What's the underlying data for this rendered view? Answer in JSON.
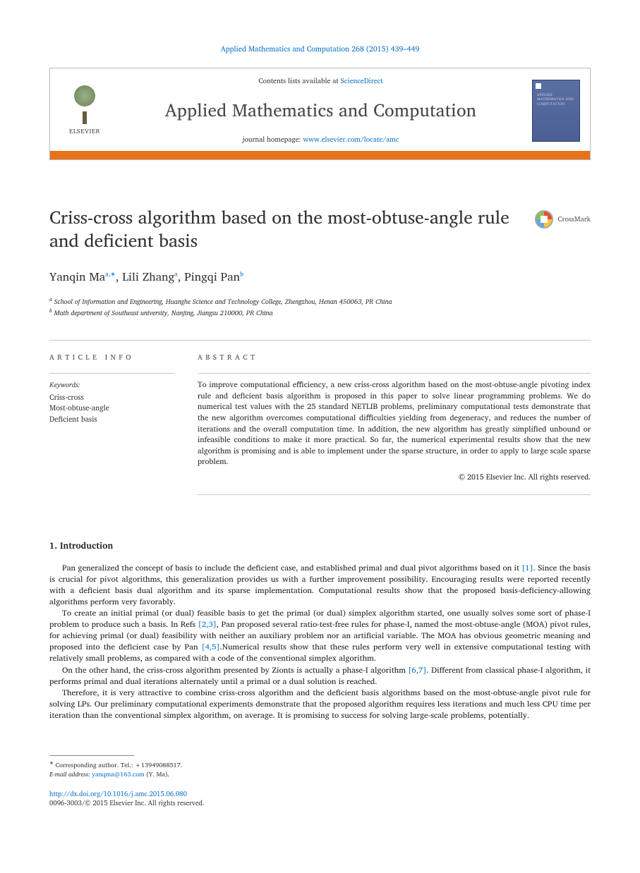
{
  "running_head": "Applied Mathematics and Computation 268 (2015) 439–449",
  "header": {
    "contents_prefix": "Contents lists available at ",
    "contents_link": "ScienceDirect",
    "journal": "Applied Mathematics and Computation",
    "homepage_prefix": "journal homepage: ",
    "homepage_link": "www.elsevier.com/locate/amc",
    "publisher_word": "ELSEVIER",
    "cover_text": "APPLIED\nMATHEMATICS\nAND\nCOMPUTATION",
    "accent_color": "#e9711c",
    "link_color": "#1173c7"
  },
  "article": {
    "title": "Criss-cross algorithm based on the most-obtuse-angle rule and deficient basis",
    "crossmark": "CrossMark",
    "authors_html": "Yanqin Ma<sup class='sup'>a,</sup><sup class='sup star'>∗</sup>, Lili Zhang<sup class='sup'>a</sup>, Pingqi Pan<sup class='sup'>b</sup>",
    "affiliations": [
      "a School of Information and Engineering, Huanghe Science and Technology College, Zhengzhou, Henan 450063, PR China",
      "b Math department of Southeast university, Nanjing, Jiangsu 210000, PR China"
    ]
  },
  "info": {
    "heading": "ARTICLE INFO",
    "keywords_label": "Keywords:",
    "keywords": [
      "Criss-cross",
      "Most-obtuse-angle",
      "Deficient basis"
    ]
  },
  "abstract": {
    "heading": "ABSTRACT",
    "text": "To improve computational efficiency, a new criss-cross algorithm based on the most-obtuse-angle pivoting index rule and deficient basis algorithm is proposed in this paper to solve linear programming problems. We do numerical test values with the 25 standard NETLIB problems, preliminary computational tests demonstrate that the new algorithm overcomes computational difficulties yielding from degeneracy, and reduces the number of iterations and the overall computation time. In addition, the new algorithm has greatly simplified unbound or infeasible conditions to make it more practical. So far, the numerical experimental results show that the new algorithm is promising and is able to implement under the sparse structure, in order to apply to large scale sparse problem.",
    "copyright": "© 2015 Elsevier Inc. All rights reserved."
  },
  "sections": {
    "intro_heading": "1. Introduction",
    "paragraphs": [
      "Pan generalized the concept of basis to include the deficient case, and established primal and dual pivot algorithms based on it <a href='#'>[1]</a>. Since the basis is crucial for pivot algorithms, this generalization provides us with a further improvement possibility. Encouraging results were reported recently with a deficient basis dual algorithm and its sparse implementation. Computational results show that the proposed basis-deficiency-allowing algorithms perform very favorably.",
      "To create an initial primal (or dual) feasible basis to get the primal (or dual) simplex algorithm started, one usually solves some sort of phase-I problem to produce such a basis. In Refs <a href='#'>[2,3]</a>, Pan proposed several ratio-test-free rules for phase-I, named the most-obtuse-angle (MOA) pivot rules, for achieving primal (or dual) feasibility with neither an auxiliary problem nor an artificial variable. The MOA has obvious geometric meaning and proposed into the deficient case by Pan <a href='#'>[4,5]</a>.Numerical results show that these rules perform very well in extensive computational testing with relatively small problems, as compared with a code of the conventional simplex algorithm.",
      "On the other hand, the criss-cross algorithm presented by Zionts is actually a phase-I algorithm <a href='#'>[6,7]</a>. Different from classical phase-I algorithm, it performs primal and dual iterations alternately until a primal or a dual solution is reached.",
      "Therefore, it is very attractive to combine criss-cross algorithm and the deficient basis algorithms based on the most-obtuse-angle pivot rule for solving LPs. Our preliminary computational experiments demonstrate that the proposed algorithm requires less iterations and much less CPU time per iteration than the conventional simplex algorithm, on average. It is promising to success for solving large-scale problems, potentially."
    ]
  },
  "footnote": {
    "corresponding": "Corresponding author. Tel.: +13949088517.",
    "email_label": "E-mail address:",
    "email": "yanqma@163.com",
    "email_author": "(Y. Ma)."
  },
  "footer": {
    "doi": "http://dx.doi.org/10.1016/j.amc.2015.06.080",
    "issn_copy": "0096-3003/© 2015 Elsevier Inc. All rights reserved."
  }
}
